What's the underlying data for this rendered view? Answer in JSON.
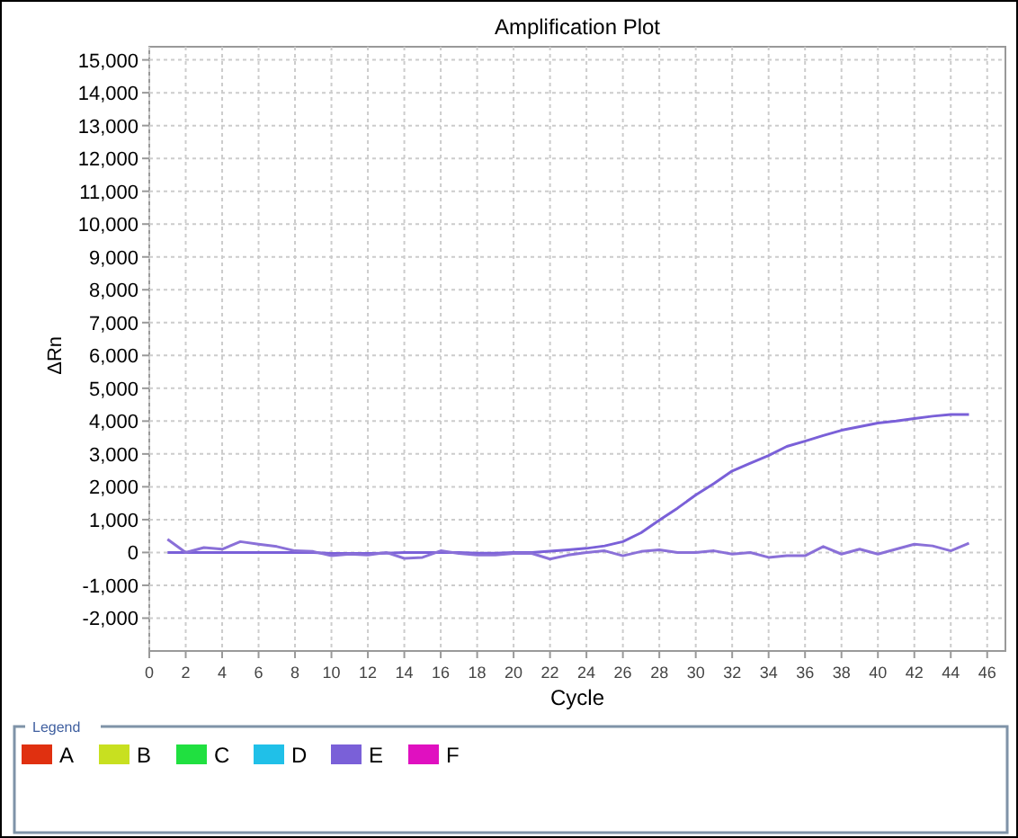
{
  "chart_data": {
    "type": "line",
    "title": "Amplification Plot",
    "xlabel": "Cycle",
    "ylabel": "ΔRn",
    "legend_title": "Legend",
    "legend": "bottom",
    "grid": true,
    "line_style": "solid",
    "marker": "none",
    "x": [
      1,
      2,
      3,
      4,
      5,
      6,
      7,
      8,
      9,
      10,
      11,
      12,
      13,
      14,
      15,
      16,
      17,
      18,
      19,
      20,
      21,
      22,
      23,
      24,
      25,
      26,
      27,
      28,
      29,
      30,
      31,
      32,
      33,
      34,
      35,
      36,
      37,
      38,
      39,
      40,
      41,
      42,
      43,
      44,
      45
    ],
    "xlim": [
      0,
      47
    ],
    "xticks": [
      0,
      2,
      4,
      6,
      8,
      10,
      12,
      14,
      16,
      18,
      20,
      22,
      24,
      26,
      28,
      30,
      32,
      34,
      36,
      38,
      40,
      42,
      44,
      46
    ],
    "ylim": [
      -3000,
      15400
    ],
    "yticks": [
      {
        "value": -2000,
        "label": "-2,000"
      },
      {
        "value": -1000,
        "label": "-1,000"
      },
      0,
      {
        "value": 1000,
        "label": "1,000"
      },
      {
        "value": 2000,
        "label": "2,000"
      },
      {
        "value": 3000,
        "label": "3,000"
      },
      {
        "value": 4000,
        "label": "4,000"
      },
      {
        "value": 5000,
        "label": "5,000"
      },
      {
        "value": 6000,
        "label": "6,000"
      },
      {
        "value": 7000,
        "label": "7,000"
      },
      {
        "value": 8000,
        "label": "8,000"
      },
      {
        "value": 9000,
        "label": "9,000"
      },
      {
        "value": 10000,
        "label": "10,000"
      },
      {
        "value": 11000,
        "label": "11,000"
      },
      {
        "value": 12000,
        "label": "12,000"
      },
      {
        "value": 13000,
        "label": "13,000"
      },
      {
        "value": 14000,
        "label": "14,000"
      },
      {
        "value": 15000,
        "label": "15,000"
      }
    ],
    "series": [
      {
        "name": "A",
        "color": "#e03010",
        "values": [
          null,
          null,
          null,
          null,
          null,
          null,
          null,
          null,
          null,
          null,
          null,
          null,
          null,
          null,
          null,
          null,
          null,
          null,
          null,
          null,
          null,
          null,
          null,
          null,
          null,
          null,
          null,
          null,
          null,
          null,
          null,
          null,
          null,
          null,
          null,
          null,
          null,
          null,
          null,
          null,
          null,
          null,
          null,
          null,
          null
        ]
      },
      {
        "name": "B",
        "color": "#c8e020",
        "values": [
          null,
          null,
          null,
          null,
          null,
          null,
          null,
          null,
          null,
          null,
          null,
          null,
          null,
          null,
          null,
          null,
          null,
          null,
          null,
          null,
          null,
          null,
          null,
          null,
          null,
          null,
          null,
          null,
          null,
          null,
          null,
          null,
          null,
          null,
          null,
          null,
          null,
          null,
          null,
          null,
          null,
          null,
          null,
          null,
          null
        ]
      },
      {
        "name": "C",
        "color": "#20e040",
        "values": [
          null,
          null,
          null,
          null,
          null,
          null,
          null,
          null,
          null,
          null,
          null,
          null,
          null,
          null,
          null,
          null,
          null,
          null,
          null,
          null,
          null,
          null,
          null,
          null,
          null,
          null,
          null,
          null,
          null,
          null,
          null,
          null,
          null,
          null,
          null,
          null,
          null,
          null,
          null,
          null,
          null,
          null,
          null,
          null,
          null
        ]
      },
      {
        "name": "D",
        "color": "#20c0e8",
        "values": [
          null,
          null,
          null,
          null,
          null,
          null,
          null,
          null,
          null,
          null,
          null,
          null,
          null,
          null,
          null,
          null,
          null,
          null,
          null,
          null,
          null,
          null,
          null,
          null,
          null,
          null,
          null,
          null,
          null,
          null,
          null,
          null,
          null,
          null,
          null,
          null,
          null,
          null,
          null,
          null,
          null,
          null,
          null,
          null,
          null
        ]
      },
      {
        "name": "E",
        "color": "#7a60d8",
        "values": [
          0,
          0,
          0,
          0,
          0,
          0,
          0,
          0,
          0,
          -30,
          -30,
          -30,
          -20,
          0,
          0,
          0,
          0,
          -20,
          -20,
          0,
          0,
          40,
          80,
          125,
          200,
          330,
          600,
          985,
          1350,
          1750,
          2100,
          2480,
          2720,
          2950,
          3230,
          3390,
          3560,
          3720,
          3830,
          3940,
          4000,
          4080,
          4150,
          4200,
          4200
        ]
      },
      {
        "name": "F",
        "color": "#e010c0",
        "values": [
          null,
          null,
          null,
          null,
          null,
          null,
          null,
          null,
          null,
          null,
          null,
          null,
          null,
          null,
          null,
          null,
          null,
          null,
          null,
          null,
          null,
          null,
          null,
          null,
          null,
          null,
          null,
          null,
          null,
          null,
          null,
          null,
          null,
          null,
          null,
          null,
          null,
          null,
          null,
          null,
          null,
          null,
          null,
          null,
          null
        ]
      },
      {
        "color": "#8a70d8",
        "values": [
          400,
          0,
          150,
          100,
          330,
          250,
          180,
          50,
          30,
          -100,
          -50,
          -80,
          0,
          -180,
          -150,
          50,
          -30,
          -80,
          -80,
          -30,
          -30,
          -200,
          -80,
          0,
          50,
          -100,
          30,
          80,
          0,
          0,
          50,
          -50,
          0,
          -150,
          -100,
          -100,
          180,
          -50,
          100,
          -50,
          100,
          250,
          200,
          50,
          280
        ]
      }
    ]
  }
}
